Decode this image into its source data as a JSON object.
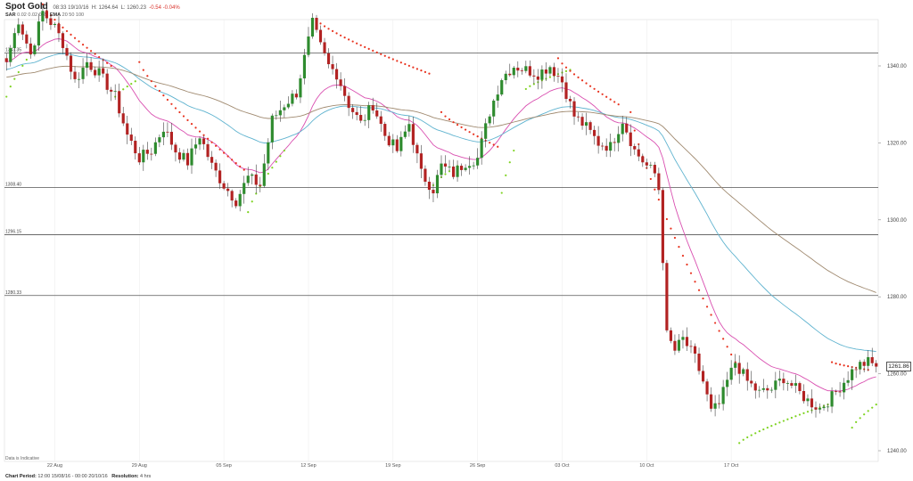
{
  "header": {
    "title": "Spot Gold",
    "time": "08:33 19/10/16",
    "high_label": "H:",
    "high": "1264.64",
    "low_label": "L:",
    "low": "1260.23",
    "change": "-0.54",
    "change_pct": "-0.04%"
  },
  "indicators": {
    "sar_label": "SAR",
    "sar_values": "0.02  0.02  0.2",
    "ema_label": "EMA",
    "ema_values": "20  50  100"
  },
  "footer": {
    "period_label": "Chart Period:",
    "period_value": "12:00 15/08/16 - 00:00 20/10/16",
    "resolution_label": "Resolution:",
    "resolution_value": "4 hrs"
  },
  "note": "Data is Indicative",
  "colors": {
    "bull": "#2e8b2e",
    "bear": "#b22222",
    "ema20": "#d94fb0",
    "ema50": "#5fb3cf",
    "ema100": "#a08a70",
    "sar_up": "#7ed321",
    "sar_down": "#e8321e",
    "hline": "#555555"
  },
  "chart_data": {
    "type": "candlestick",
    "title": "Spot Gold",
    "ylim": [
      1238,
      1356
    ],
    "y_ticks": [
      "1340.00",
      "1320.00",
      "1300.00",
      "1280.00",
      "1260.00",
      "1240.00"
    ],
    "x_ticks": [
      "22 Aug",
      "29 Aug",
      "05 Sep",
      "12 Sep",
      "19 Sep",
      "26 Sep",
      "03 Oct",
      "10 Oct",
      "17 Oct"
    ],
    "last_price": "1261.86",
    "horizontal_levels": [
      {
        "value": 1343.35,
        "label": "1343.35"
      },
      {
        "value": 1308.4,
        "label": "1308.40"
      },
      {
        "value": 1296.15,
        "label": "1296.15"
      },
      {
        "value": 1280.33,
        "label": "1280.33"
      }
    ],
    "key_points": [
      [
        0,
        1341
      ],
      [
        3,
        1352
      ],
      [
        6,
        1343
      ],
      [
        9,
        1354
      ],
      [
        12,
        1350
      ],
      [
        14,
        1346
      ],
      [
        17,
        1336
      ],
      [
        20,
        1341
      ],
      [
        23,
        1338
      ],
      [
        27,
        1332
      ],
      [
        30,
        1322
      ],
      [
        33,
        1316
      ],
      [
        36,
        1318
      ],
      [
        39,
        1324
      ],
      [
        42,
        1318
      ],
      [
        45,
        1315
      ],
      [
        48,
        1322
      ],
      [
        51,
        1314
      ],
      [
        54,
        1309
      ],
      [
        57,
        1305
      ],
      [
        60,
        1311
      ],
      [
        63,
        1309
      ],
      [
        66,
        1326
      ],
      [
        69,
        1330
      ],
      [
        72,
        1333
      ],
      [
        74,
        1342
      ],
      [
        76,
        1351
      ],
      [
        78,
        1345
      ],
      [
        80,
        1340
      ],
      [
        82,
        1338
      ],
      [
        85,
        1330
      ],
      [
        88,
        1325
      ],
      [
        91,
        1330
      ],
      [
        94,
        1322
      ],
      [
        97,
        1318
      ],
      [
        100,
        1325
      ],
      [
        103,
        1312
      ],
      [
        106,
        1308
      ],
      [
        108,
        1314
      ],
      [
        111,
        1312
      ],
      [
        114,
        1315
      ],
      [
        117,
        1316
      ],
      [
        120,
        1328
      ],
      [
        123,
        1337
      ],
      [
        126,
        1340
      ],
      [
        129,
        1339
      ],
      [
        132,
        1338
      ],
      [
        135,
        1340
      ],
      [
        138,
        1336
      ],
      [
        141,
        1327
      ],
      [
        144,
        1324
      ],
      [
        147,
        1320
      ],
      [
        150,
        1319
      ],
      [
        153,
        1326
      ],
      [
        156,
        1318
      ],
      [
        159,
        1314
      ],
      [
        161,
        1312
      ],
      [
        162,
        1308
      ],
      [
        163,
        1290
      ],
      [
        164,
        1270
      ],
      [
        166,
        1266
      ],
      [
        168,
        1269
      ],
      [
        171,
        1264
      ],
      [
        173,
        1258
      ],
      [
        175,
        1250
      ],
      [
        177,
        1252
      ],
      [
        179,
        1258
      ],
      [
        181,
        1263
      ],
      [
        184,
        1258
      ],
      [
        187,
        1255
      ],
      [
        190,
        1256
      ],
      [
        193,
        1259
      ],
      [
        196,
        1256
      ],
      [
        199,
        1253
      ],
      [
        202,
        1251
      ],
      [
        205,
        1254
      ],
      [
        208,
        1258
      ],
      [
        211,
        1262
      ],
      [
        214,
        1263
      ],
      [
        216,
        1261.86
      ]
    ],
    "psar_up_segments": [
      {
        "start": 0,
        "end": 8,
        "from": 1332,
        "to": 1346
      },
      {
        "start": 27,
        "end": 32,
        "from": 1332,
        "to": 1336
      },
      {
        "start": 60,
        "end": 69,
        "from": 1302,
        "to": 1318
      },
      {
        "start": 106,
        "end": 112,
        "from": 1309,
        "to": 1314
      },
      {
        "start": 123,
        "end": 126,
        "from": 1307,
        "to": 1318
      },
      {
        "start": 129,
        "end": 140,
        "from": 1334,
        "to": 1339
      },
      {
        "start": 182,
        "end": 204,
        "from": 1242,
        "to": 1252
      },
      {
        "start": 210,
        "end": 216,
        "from": 1246,
        "to": 1252
      }
    ],
    "psar_down_segments": [
      {
        "start": 9,
        "end": 26,
        "from": 1356,
        "to": 1340
      },
      {
        "start": 33,
        "end": 59,
        "from": 1341,
        "to": 1313
      },
      {
        "start": 77,
        "end": 105,
        "from": 1352,
        "to": 1338
      },
      {
        "start": 108,
        "end": 122,
        "from": 1328,
        "to": 1319
      },
      {
        "start": 137,
        "end": 152,
        "from": 1342,
        "to": 1330
      },
      {
        "start": 155,
        "end": 181,
        "from": 1328,
        "to": 1263
      },
      {
        "start": 205,
        "end": 214,
        "from": 1263,
        "to": 1261
      }
    ],
    "ema_periods": [
      20,
      50,
      100
    ]
  }
}
